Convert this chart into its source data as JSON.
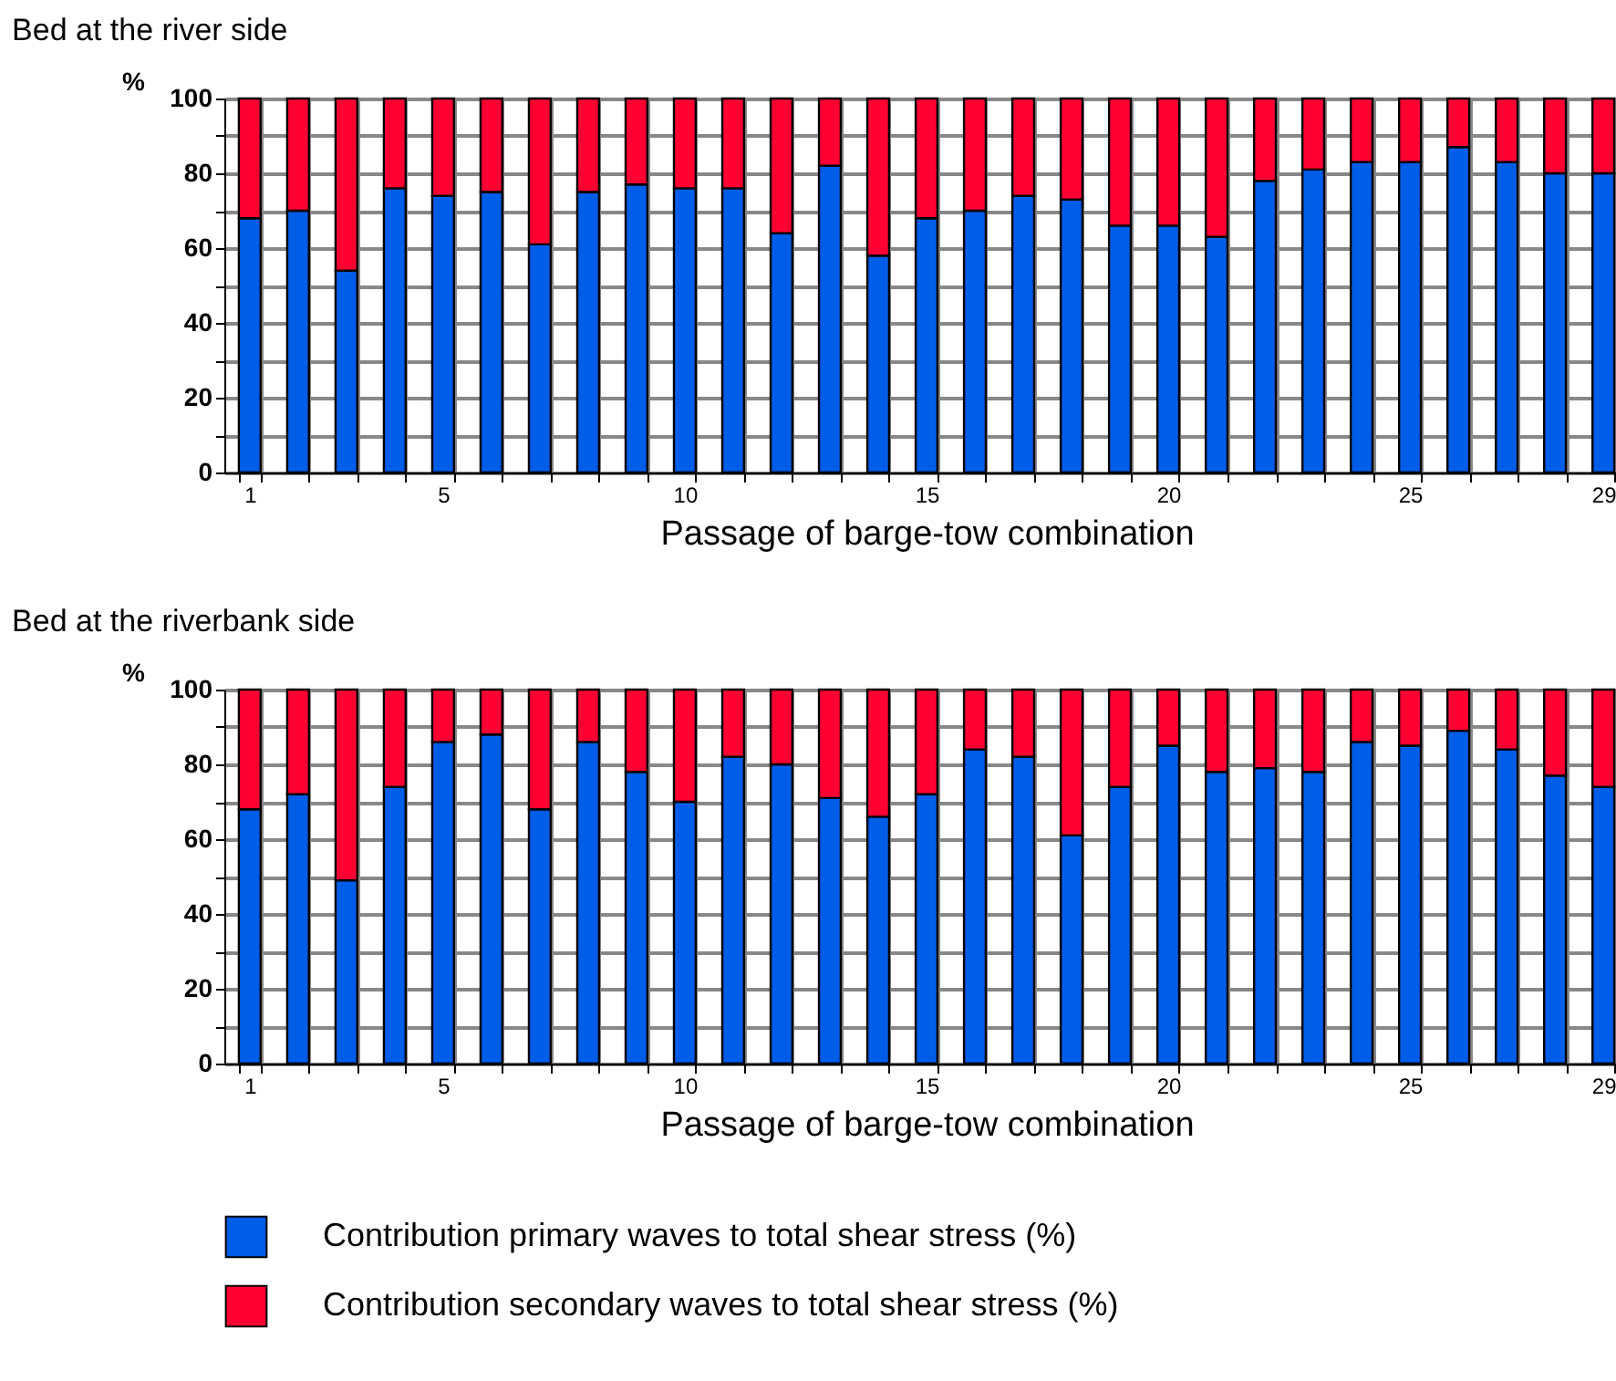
{
  "chart_data": [
    {
      "type": "bar",
      "title": "Bed at the river side",
      "xlabel": "Passage of barge-tow combination",
      "ylabel": "%",
      "stacked": true,
      "grid": true,
      "legend": "bottom",
      "categories": [
        "1",
        null,
        null,
        null,
        "5",
        null,
        null,
        null,
        null,
        "10",
        null,
        null,
        null,
        null,
        "15",
        null,
        null,
        null,
        null,
        "20",
        null,
        null,
        null,
        null,
        "25",
        null,
        null,
        null,
        "29"
      ],
      "ylim": [
        0,
        100
      ],
      "yticks": [
        0,
        {
          "value": 10,
          "label": null
        },
        20,
        {
          "value": 30,
          "label": null
        },
        40,
        {
          "value": 50,
          "label": null
        },
        60,
        {
          "value": 70,
          "label": null
        },
        80,
        {
          "value": 90,
          "label": null
        },
        100
      ],
      "series": [
        {
          "name": "Contribution primary waves to total shear stress (%)",
          "color": "#005de8",
          "values": [
            68,
            70,
            54,
            76,
            74,
            75,
            61,
            75,
            77,
            76,
            76,
            64,
            82,
            58,
            68,
            70,
            74,
            73,
            66,
            66,
            63,
            78,
            81,
            83,
            83,
            87,
            83,
            80,
            80
          ]
        },
        {
          "name": "Contribution secondary waves to total shear stress (%)",
          "color": "#ff0033",
          "values": [
            32,
            30,
            46,
            24,
            26,
            25,
            39,
            25,
            23,
            24,
            24,
            36,
            18,
            42,
            32,
            30,
            26,
            27,
            34,
            34,
            37,
            22,
            19,
            17,
            17,
            13,
            17,
            20,
            20
          ]
        }
      ]
    },
    {
      "type": "bar",
      "title": "Bed at the riverbank side",
      "xlabel": "Passage of barge-tow combination",
      "ylabel": "%",
      "stacked": true,
      "grid": true,
      "legend": "bottom",
      "categories": [
        "1",
        null,
        null,
        null,
        "5",
        null,
        null,
        null,
        null,
        "10",
        null,
        null,
        null,
        null,
        "15",
        null,
        null,
        null,
        null,
        "20",
        null,
        null,
        null,
        null,
        "25",
        null,
        null,
        null,
        "29"
      ],
      "ylim": [
        0,
        100
      ],
      "yticks": [
        0,
        {
          "value": 10,
          "label": null
        },
        20,
        {
          "value": 30,
          "label": null
        },
        40,
        {
          "value": 50,
          "label": null
        },
        60,
        {
          "value": 70,
          "label": null
        },
        80,
        {
          "value": 90,
          "label": null
        },
        100
      ],
      "series": [
        {
          "name": "Contribution primary waves to total shear stress (%)",
          "color": "#005de8",
          "values": [
            68,
            72,
            49,
            74,
            86,
            88,
            68,
            86,
            78,
            70,
            82,
            80,
            71,
            66,
            72,
            84,
            82,
            61,
            74,
            85,
            78,
            79,
            78,
            86,
            85,
            89,
            84,
            77,
            74
          ]
        },
        {
          "name": "Contribution secondary waves to total shear stress (%)",
          "color": "#ff0033",
          "values": [
            32,
            28,
            51,
            26,
            14,
            12,
            32,
            14,
            22,
            30,
            18,
            20,
            29,
            34,
            28,
            16,
            18,
            39,
            26,
            15,
            22,
            21,
            22,
            14,
            15,
            11,
            16,
            23,
            26
          ]
        }
      ]
    }
  ]
}
